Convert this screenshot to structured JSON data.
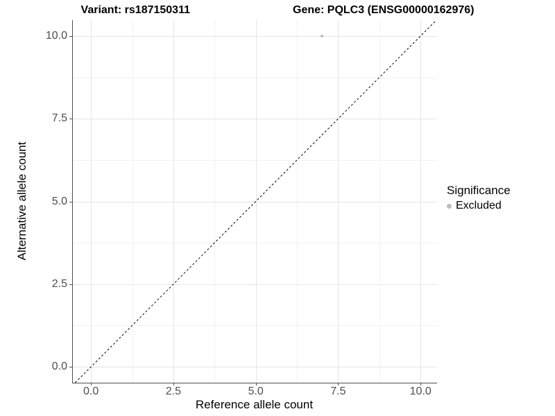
{
  "header": {
    "variant_title": "Variant: rs187150311",
    "gene_title": "Gene: PQLC3 (ENSG00000162976)"
  },
  "chart_data": {
    "type": "scatter",
    "title": "Variant: rs187150311    Gene: PQLC3 (ENSG00000162976)",
    "xlabel": "Reference allele count",
    "ylabel": "Alternative allele count",
    "xlim": [
      -0.55,
      10.5
    ],
    "ylim": [
      -0.48,
      10.48
    ],
    "x_major_ticks": [
      0,
      2.5,
      5,
      7.5,
      10
    ],
    "y_major_ticks": [
      0,
      2.5,
      5,
      7.5,
      10
    ],
    "x_tick_labels": [
      "0.0",
      "2.5",
      "5.0",
      "7.5",
      "10.0"
    ],
    "y_tick_labels": [
      "0.0",
      "2.5",
      "5.0",
      "7.5",
      "10.0"
    ],
    "x_minor_ticks": [
      1.25,
      3.75,
      6.25,
      8.75
    ],
    "y_minor_ticks": [
      1.25,
      3.75,
      6.25,
      8.75
    ],
    "grid": "major+minor",
    "series": [
      {
        "name": "Excluded",
        "marker": "circle",
        "color": "#bdbdbd",
        "points": [
          {
            "x": 7,
            "y": 10
          }
        ]
      }
    ],
    "reference_line": {
      "kind": "identity y=x",
      "style": "dashed",
      "color": "#000000"
    },
    "legend": {
      "position": "right",
      "title": "Significance",
      "entries": [
        {
          "label": "Excluded",
          "color": "#bdbdbd"
        }
      ]
    }
  },
  "colors": {
    "background": "#ffffff",
    "panel_background": "#ffffff",
    "grid_major": "#e5e5e5",
    "grid_minor": "#f2f2f2",
    "axis_line": "#4d4d4d",
    "tick_mark": "#4d4d4d",
    "tick_label": "#4d4d4d",
    "point": "#bdbdbd",
    "reference_line": "#000000"
  }
}
